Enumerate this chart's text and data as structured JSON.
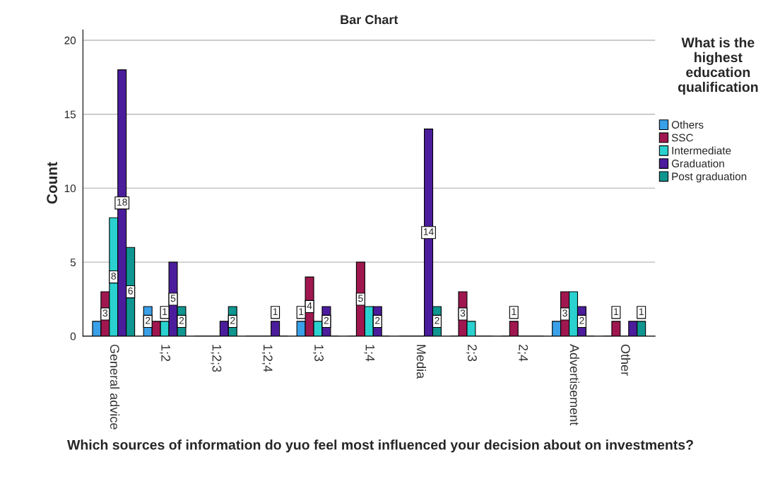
{
  "chart_data": {
    "type": "bar",
    "title": "Bar Chart",
    "xlabel": "Which sources of information do yuo feel most influenced your decision about on investments?",
    "ylabel": "Count",
    "legend_title": "What is the highest education qualification",
    "categories": [
      "General advice",
      "1;2",
      "1;2;3",
      "1;2;4",
      "1;3",
      "1;4",
      "Media",
      "2;3",
      "2;4",
      "Advertisement",
      "Other"
    ],
    "series": [
      {
        "name": "Others",
        "color": "#3aa0e8",
        "values": [
          1,
          2,
          0,
          0,
          1,
          0,
          0,
          0,
          0,
          1,
          0
        ],
        "value_labels": [
          null,
          "2",
          null,
          null,
          "1",
          null,
          null,
          null,
          null,
          null,
          null
        ]
      },
      {
        "name": "SSC",
        "color": "#a0174f",
        "values": [
          3,
          1,
          0,
          0,
          4,
          5,
          0,
          3,
          1,
          3,
          1
        ],
        "value_labels": [
          "3",
          null,
          null,
          null,
          "4",
          "5",
          null,
          "3",
          "1",
          "3",
          "1"
        ]
      },
      {
        "name": "Intermediate",
        "color": "#2ad1cf",
        "values": [
          8,
          1,
          0,
          0,
          1,
          2,
          0,
          1,
          0,
          3,
          0
        ],
        "value_labels": [
          "8",
          "1",
          null,
          null,
          null,
          null,
          null,
          null,
          null,
          null,
          null
        ]
      },
      {
        "name": "Graduation",
        "color": "#4b1d9c",
        "values": [
          18,
          5,
          1,
          1,
          2,
          2,
          14,
          0,
          0,
          2,
          1
        ],
        "value_labels": [
          "18",
          "5",
          null,
          "1",
          "2",
          "2",
          "14",
          null,
          null,
          "2",
          null
        ]
      },
      {
        "name": "Post graduation",
        "color": "#0f9690",
        "values": [
          6,
          2,
          2,
          0,
          0,
          0,
          2,
          0,
          0,
          0,
          1
        ],
        "value_labels": [
          "6",
          "2",
          "2",
          null,
          null,
          null,
          "2",
          null,
          null,
          null,
          "1"
        ]
      }
    ],
    "ylim": [
      0,
      20.7
    ],
    "yticks": [
      0,
      5,
      10,
      15,
      20
    ],
    "grid": "y",
    "legend": "right"
  }
}
